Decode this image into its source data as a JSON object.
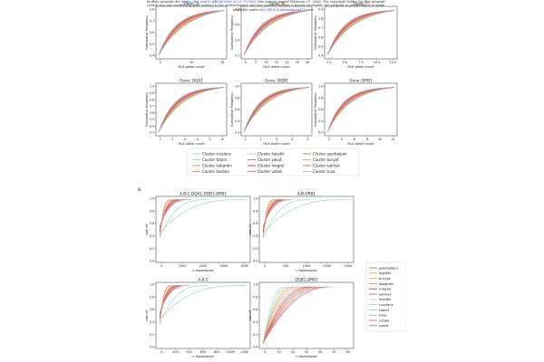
{
  "header": {
    "line1_pre": "bioRxiv preprint doi: ",
    "doi": "https://doi.org/10.64898/2026.02.23.707069",
    "line1_post": "; this version posted February 27, 2026. The copyright holder for this preprint",
    "line2": "(which was not certified by peer review) is the author/funder, who has granted bioRxiv a license to display the preprint in perpetuity. It is made",
    "line3_pre": "available under a",
    "license": "CC-BY 4.0 International license",
    "line3_post": "."
  },
  "colors": {
    "russians": "#8ecfe0",
    "tatars": "#8fd3a6",
    "kabardin": "#d58a3a",
    "bashkir": "#e8a23a",
    "kazakh": "#f0b6c4",
    "yakut": "#d96a8a",
    "megrel": "#c0392b",
    "uzbek": "#e07070",
    "azerbaijani": "#c07a3a",
    "buryat": "#f2a26b",
    "kalmyk": "#b5658c",
    "tuva": "#c9a0d8"
  },
  "panel_a": {
    "charts": [
      {
        "title": "Gene: A",
        "xlabel": "HLA allele count",
        "ylabel": "Cumulative Frequency",
        "xticks": [
          "5",
          "10",
          "15"
        ],
        "yticks": [
          "0.8",
          "0.7",
          "0.6",
          "0.5",
          "0.4"
        ]
      },
      {
        "title": "Gene: B",
        "xlabel": "HLA allele count",
        "ylabel": "Cumulative Frequency",
        "xticks": [
          "0",
          "5",
          "10",
          "15",
          "20",
          "25",
          "30"
        ],
        "yticks": [
          "0.8",
          "0.6",
          "0.4",
          "0.2"
        ]
      },
      {
        "title": "Gene: C",
        "xlabel": "HLA allele count",
        "ylabel": "Cumulative Frequency",
        "xticks": [
          "2.5",
          "5.0",
          "7.5",
          "10.0",
          "12.5"
        ],
        "yticks": [
          "0.9",
          "0.8",
          "0.7",
          "0.6",
          "0.5",
          "0.4"
        ]
      },
      {
        "title": "Gene: DQA1",
        "xlabel": "HLA allele count",
        "ylabel": "Cumulative Frequency",
        "xticks": [
          "1",
          "2",
          "3",
          "4",
          "5",
          "6"
        ],
        "yticks": [
          "1.0",
          "0.9",
          "0.8",
          "0.7",
          "0.6",
          "0.5",
          "0.4",
          "0.3"
        ]
      },
      {
        "title": "Gene: DQB1",
        "xlabel": "HLA allele count",
        "ylabel": "Cumulative Frequency",
        "xticks": [
          "1",
          "2",
          "3",
          "4",
          "5"
        ],
        "yticks": [
          "1.0",
          "0.8",
          "0.6",
          "0.4",
          "0.2"
        ]
      },
      {
        "title": "Gene: DRB1",
        "xlabel": "HLA allele count",
        "ylabel": "Cumulative Frequency",
        "xticks": [
          "2",
          "4",
          "6",
          "8",
          "10",
          "12"
        ],
        "yticks": [
          "1.0",
          "0.8",
          "0.6",
          "0.4",
          "0.2"
        ]
      }
    ],
    "legend": [
      {
        "label": "Cluster russians",
        "key": "russians"
      },
      {
        "label": "Cluster kazakh",
        "key": "kazakh"
      },
      {
        "label": "Cluster azerbaijani",
        "key": "azerbaijani"
      },
      {
        "label": "Cluster tatars",
        "key": "tatars"
      },
      {
        "label": "Cluster yakut",
        "key": "yakut"
      },
      {
        "label": "Cluster buryat",
        "key": "buryat"
      },
      {
        "label": "Cluster kabardin",
        "key": "kabardin"
      },
      {
        "label": "Cluster megrel",
        "key": "megrel"
      },
      {
        "label": "Cluster kalmyk",
        "key": "kalmyk"
      },
      {
        "label": "Cluster bashkir",
        "key": "bashkir"
      },
      {
        "label": "Cluster uzbek",
        "key": "uzbek"
      },
      {
        "label": "Cluster tuva",
        "key": "tuva"
      }
    ]
  },
  "panel_b": {
    "label": "B.",
    "charts": [
      {
        "title": "A-B-C-DQA1-DQB1-DRB1",
        "xlabel": "n haplotypes",
        "ylabel": "cum AF",
        "xticks": [
          "0",
          "1000",
          "2000",
          "3000",
          "4000"
        ],
        "yticks": [
          "0.0",
          "0.2",
          "0.4",
          "0.6",
          "0.8",
          "1.0"
        ]
      },
      {
        "title": "A-B-DRB1",
        "xlabel": "n haplotypes",
        "ylabel": "cum AF",
        "xticks": [
          "0",
          "500",
          "1000",
          "1500",
          "2000"
        ],
        "yticks": [
          "0.0",
          "0.2",
          "0.4",
          "0.6",
          "0.8",
          "1.0"
        ]
      },
      {
        "title": "A-B-C",
        "xlabel": "n haplotypes",
        "ylabel": "cum AF",
        "xticks": [
          "0",
          "200",
          "400",
          "600",
          "800",
          "1000",
          "1200"
        ],
        "yticks": [
          "0.0",
          "0.2",
          "0.4",
          "0.6",
          "0.8",
          "1.0"
        ]
      },
      {
        "title": "DQB1-DRB1",
        "xlabel": "n haplotypes",
        "ylabel": "cum AF",
        "xticks": [
          "0",
          "10",
          "20",
          "30",
          "40",
          "50",
          "60"
        ],
        "yticks": [
          "0.0",
          "0.2",
          "0.4",
          "0.6",
          "0.8",
          "1.0"
        ]
      }
    ],
    "legend": [
      {
        "label": "azerbaijani",
        "key": "azerbaijani"
      },
      {
        "label": "bashkir",
        "key": "bashkir"
      },
      {
        "label": "buryat",
        "key": "buryat"
      },
      {
        "label": "kabardin",
        "key": "kabardin"
      },
      {
        "label": "megrel",
        "key": "megrel"
      },
      {
        "label": "kalmyk",
        "key": "kalmyk"
      },
      {
        "label": "kazakh",
        "key": "kazakh"
      },
      {
        "label": "russians",
        "key": "russians"
      },
      {
        "label": "tatars",
        "key": "tatars"
      },
      {
        "label": "tuva",
        "key": "tuva"
      },
      {
        "label": "uzbek",
        "key": "uzbek"
      },
      {
        "label": "yakut",
        "key": "yakut"
      }
    ]
  }
}
